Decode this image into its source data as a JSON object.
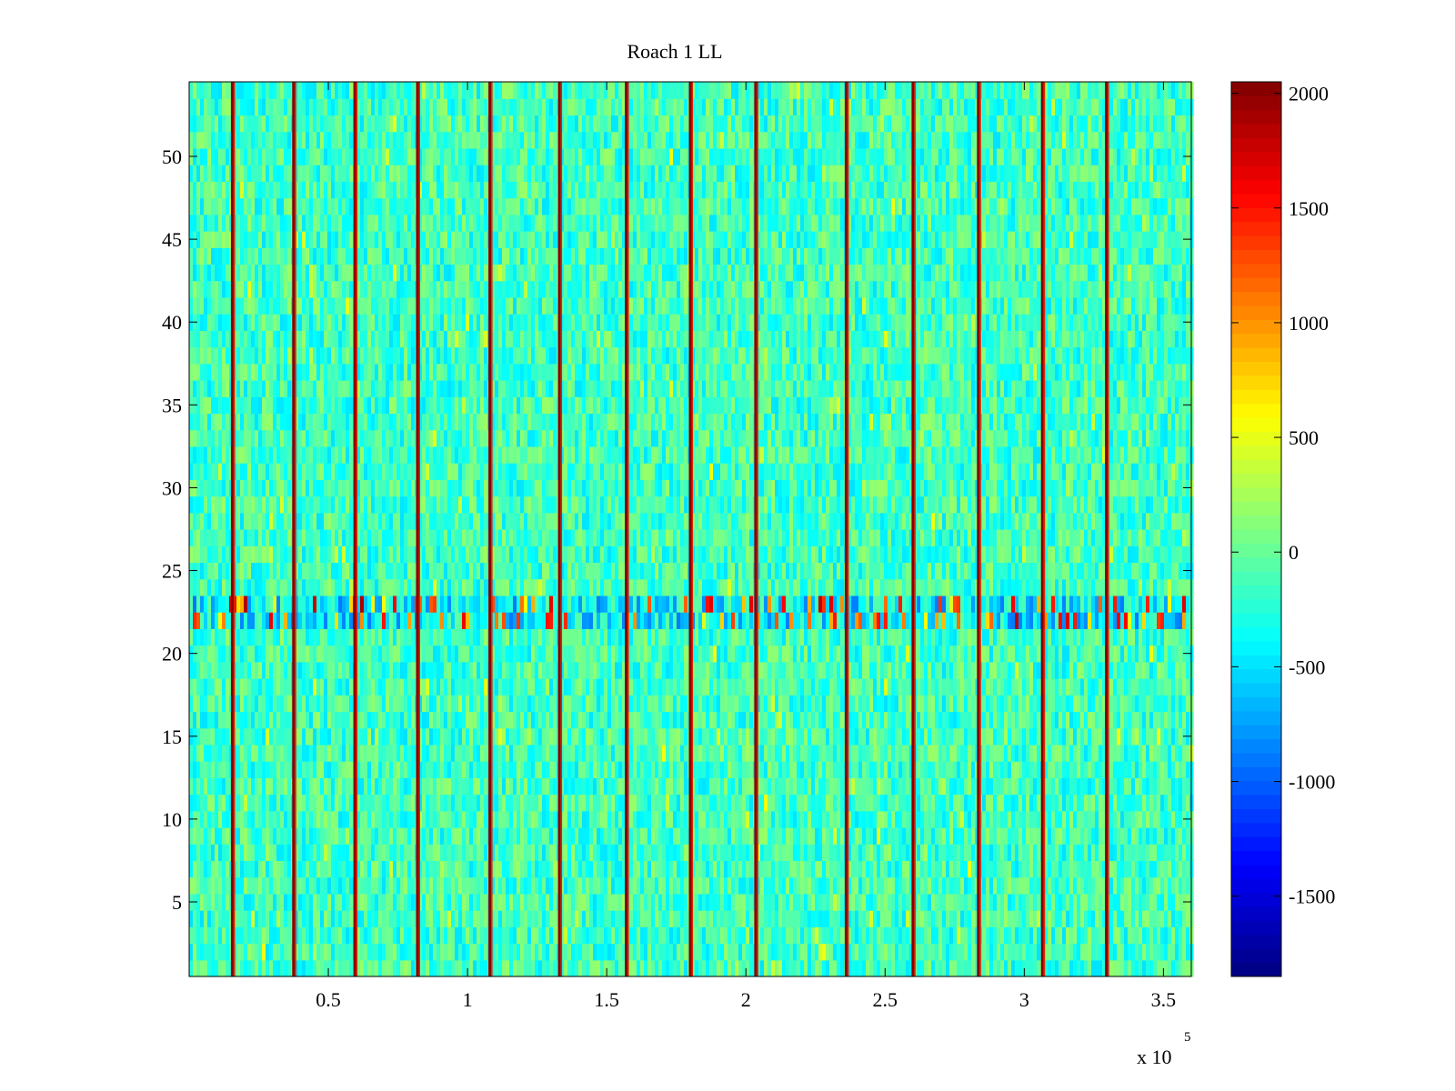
{
  "chart_data": {
    "type": "heatmap",
    "title": "Roach 1 LL",
    "xlabel": "",
    "ylabel": "",
    "x_multiplier_label": "x 10",
    "x_multiplier_exponent": "5",
    "xlim": [
      0,
      360000
    ],
    "ylim": [
      0.5,
      54.5
    ],
    "x_ticks": [
      0.5,
      1,
      1.5,
      2,
      2.5,
      3,
      3.5
    ],
    "x_tick_labels": [
      "0.5",
      "1",
      "1.5",
      "2",
      "2.5",
      "3",
      "3.5"
    ],
    "y_ticks": [
      5,
      10,
      15,
      20,
      25,
      30,
      35,
      40,
      45,
      50
    ],
    "y_tick_labels": [
      "5",
      "10",
      "15",
      "20",
      "25",
      "30",
      "35",
      "40",
      "45",
      "50"
    ],
    "n_rows": 54,
    "colormap": "jet",
    "colorbar": {
      "clim": [
        -1850,
        2050
      ],
      "ticks": [
        2000,
        1500,
        1000,
        500,
        0,
        -500,
        -1000,
        -1500
      ],
      "tick_labels": [
        "2000",
        "1500",
        "1000",
        "500",
        "0",
        "-500",
        "-1000",
        "-1500"
      ]
    },
    "spike_columns_x": [
      15500,
      37500,
      59500,
      82000,
      108000,
      133000,
      157000,
      180000,
      203500,
      236000,
      260000,
      283500,
      306500,
      329500
    ],
    "active_rows": [
      22,
      23
    ],
    "grid": false,
    "legend": "none"
  }
}
